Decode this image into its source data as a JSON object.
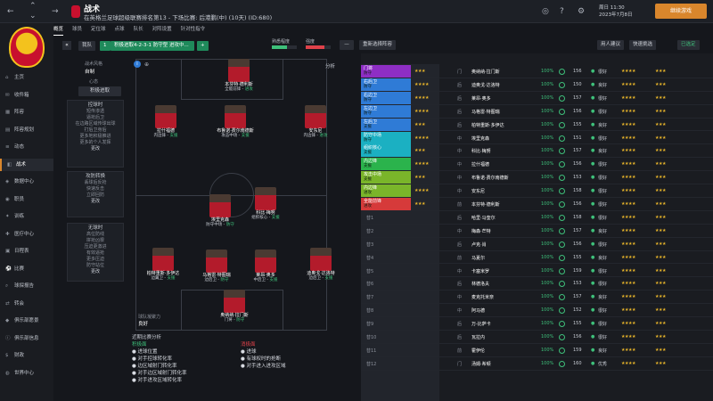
{
  "window": {
    "title": "战术",
    "subtitle": "在英格兰足球超级联赛排名第13 - 下场比赛: 后港鹏(中) (10天) (ID:680)",
    "time": "周日 11:30",
    "date": "2023年7月8日",
    "continue": "继续游戏"
  },
  "sidebar": {
    "items": [
      "主页",
      "收件箱",
      "阵容",
      "阵容规划",
      "动态",
      "战术",
      "数据中心",
      "职员",
      "训练",
      "医疗中心",
      "日程表",
      "比赛",
      "球探报告",
      "转会",
      "俱乐部愿景",
      "俱乐部信息",
      "财政",
      "世界中心"
    ]
  },
  "tabs": [
    "概览",
    "球员",
    "定位球",
    "点球",
    "队长",
    "对阵设置",
    "针对性指令"
  ],
  "toolbar": {
    "badge": "我队",
    "num": "1",
    "formation_label": "积极进取4-2-3-1 防守型 进攻中...",
    "fit_label": "熟悉程度",
    "cohesion_label": "强度",
    "pick_btn": "重新选择阵容",
    "suggest": "用人建议",
    "quick": "快速挑选",
    "assigned": "已选定"
  },
  "left": {
    "style_hdr": "战术风格",
    "style_val": "自制",
    "mentality_hdr": "心态",
    "mentality_val": "积极进取",
    "in_possession": "控球时",
    "items1": [
      "短传渗透",
      "逼抢后卫",
      "在边路区域传球出球",
      "打后卫身后",
      "更多地积极推进",
      "更多的个人发挥"
    ],
    "more": "更改",
    "transition": "攻防转换",
    "items2": [
      "丢球后反抢",
      "快速反击",
      "立即回防"
    ],
    "out_possession": "无球时",
    "items3": [
      "高位防线",
      "拼抢凶狠",
      "压迫更激进",
      "有效逼抢",
      "更多压迫",
      "防守站位"
    ]
  },
  "pitch": {
    "analysis": "分析",
    "players": [
      {
        "name": "本芬特·德利斯",
        "pos": "全能前锋",
        "rating": "进攻"
      },
      {
        "name": "拉什福德",
        "pos": "内边锋",
        "rating": "支援"
      },
      {
        "name": "布鲁诺·费尔南德斯",
        "pos": "攻击中场",
        "rating": "支援"
      },
      {
        "name": "安东尼",
        "pos": "内边锋",
        "rating": "进攻"
      },
      {
        "name": "埃里克森",
        "pos": "防守中场",
        "rating": "防守"
      },
      {
        "name": "科比·梅努",
        "pos": "组织核心",
        "rating": "支援"
      },
      {
        "name": "柏特重斯·多伊达",
        "pos": "边翼卫",
        "rating": "支援"
      },
      {
        "name": "马格雷·特图瑞",
        "pos": "边后卫",
        "rating": "防守"
      },
      {
        "name": "莱昂·奥多",
        "pos": "中后卫",
        "rating": "支援"
      },
      {
        "name": "迪奥戈·达洛特",
        "pos": "边后卫",
        "rating": "支援"
      },
      {
        "name": "奥纳纳·拉门斯",
        "pos": "门将",
        "rating": "防守"
      }
    ],
    "setpiece_label": "球队凝聚力",
    "setpiece_val": "良好"
  },
  "analysis": {
    "title": "近期比赛分析",
    "good_hdr": "积极面",
    "good": [
      "进球位置",
      "对手控球转化率",
      "边区域射门转化率",
      "对手边区域射门转化率",
      "对手进攻区域转化率"
    ],
    "bad_hdr": "消极面",
    "bad": [
      "进球",
      "有球权时的抢断",
      "对手进入进攻区域"
    ],
    "middle": "中路"
  },
  "roster": {
    "slots": [
      {
        "name": "门将",
        "role": "防守",
        "color": "#8e2ec4"
      },
      {
        "name": "右后卫",
        "role": "防守",
        "color": "#2f7bd6"
      },
      {
        "name": "右边卫",
        "role": "防守",
        "color": "#2f7bd6"
      },
      {
        "name": "左边卫",
        "role": "防守",
        "color": "#2f7bd6"
      },
      {
        "name": "左后卫",
        "role": "支援",
        "color": "#2f7bd6"
      },
      {
        "name": "防守中场",
        "role": "防守",
        "color": "#1bb0c2"
      },
      {
        "name": "组织核心",
        "role": "支援",
        "color": "#1bb0c2"
      },
      {
        "name": "内边锋",
        "role": "支援",
        "color": "#2bb34c"
      },
      {
        "name": "攻击中场",
        "role": "支援",
        "color": "#7ab52a"
      },
      {
        "name": "内边锋",
        "role": "进攻",
        "color": "#7ab52a"
      },
      {
        "name": "全能前锋",
        "role": "进攻",
        "color": "#d63a3a"
      }
    ],
    "subs": [
      "替1",
      "替2",
      "替3",
      "替4",
      "替5",
      "替6",
      "替7",
      "替8",
      "替9",
      "替10",
      "替11",
      "替12",
      "替13"
    ],
    "players": [
      {
        "pos": "门",
        "name": "奥纳纳·拉门斯",
        "pct": "100%",
        "fit": "156",
        "morale": "很好"
      },
      {
        "pos": "后",
        "name": "迪奥戈·达洛特",
        "pct": "100%",
        "fit": "150",
        "morale": "良好"
      },
      {
        "pos": "后",
        "name": "莱昂·奥多",
        "pct": "100%",
        "fit": "157",
        "morale": "很好"
      },
      {
        "pos": "后",
        "name": "马格雷·特图瑞",
        "pct": "100%",
        "fit": "156",
        "morale": "很好"
      },
      {
        "pos": "后",
        "name": "柏特重斯·多伊达",
        "pct": "100%",
        "fit": "155",
        "morale": "良好"
      },
      {
        "pos": "中",
        "name": "埃里克森",
        "pct": "100%",
        "fit": "151",
        "morale": "很好"
      },
      {
        "pos": "中",
        "name": "科比·梅努",
        "pct": "100%",
        "fit": "157",
        "morale": "良好"
      },
      {
        "pos": "中",
        "name": "拉什福德",
        "pct": "100%",
        "fit": "156",
        "morale": "很好"
      },
      {
        "pos": "中",
        "name": "布鲁诺·费尔南德斯",
        "pct": "100%",
        "fit": "153",
        "morale": "很好"
      },
      {
        "pos": "中",
        "name": "安东尼",
        "pct": "100%",
        "fit": "158",
        "morale": "很好"
      },
      {
        "pos": "前",
        "name": "本芬特·德利斯",
        "pct": "100%",
        "fit": "156",
        "morale": "很好"
      },
      {
        "pos": "后",
        "name": "哈里·马奎尔",
        "pct": "100%",
        "fit": "158",
        "morale": "很好"
      },
      {
        "pos": "中",
        "name": "梅森·芒特",
        "pct": "100%",
        "fit": "157",
        "morale": "良好"
      },
      {
        "pos": "后",
        "name": "卢克·肖",
        "pct": "100%",
        "fit": "156",
        "morale": "很好"
      },
      {
        "pos": "前",
        "name": "马夏尔",
        "pct": "100%",
        "fit": "155",
        "morale": "良好"
      },
      {
        "pos": "中",
        "name": "卡塞米罗",
        "pct": "100%",
        "fit": "159",
        "morale": "很好"
      },
      {
        "pos": "后",
        "name": "林德洛夫",
        "pct": "100%",
        "fit": "153",
        "morale": "很好"
      },
      {
        "pos": "中",
        "name": "麦克托米奈",
        "pct": "100%",
        "fit": "157",
        "morale": "良好"
      },
      {
        "pos": "中",
        "name": "阿马德",
        "pct": "100%",
        "fit": "152",
        "morale": "很好"
      },
      {
        "pos": "后",
        "name": "万-比萨卡",
        "pct": "100%",
        "fit": "155",
        "morale": "很好"
      },
      {
        "pos": "后",
        "name": "瓦拉内",
        "pct": "100%",
        "fit": "156",
        "morale": "很好"
      },
      {
        "pos": "前",
        "name": "霍伊伦",
        "pct": "100%",
        "fit": "159",
        "morale": "良好"
      },
      {
        "pos": "门",
        "name": "汤姆·希顿",
        "pct": "100%",
        "fit": "160",
        "morale": "优秀"
      }
    ]
  }
}
